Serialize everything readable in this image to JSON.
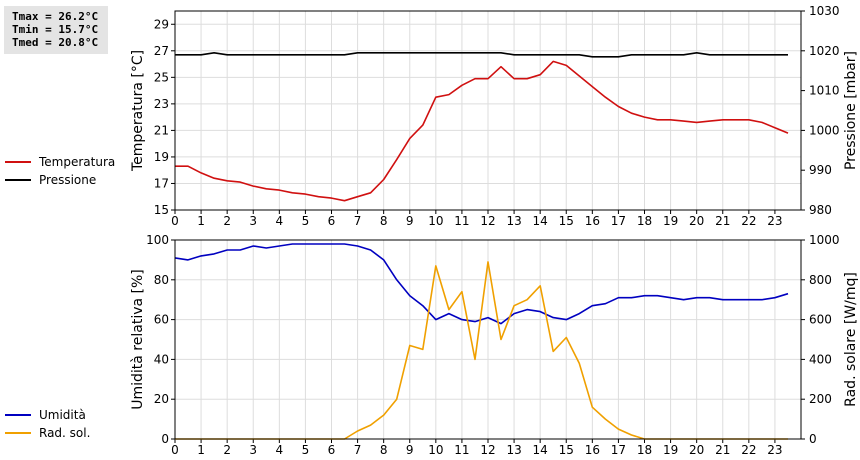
{
  "stats": {
    "tmax": "Tmax = 26.2°C",
    "tmin": "Tmin = 15.7°C",
    "tmed": "Tmed = 20.8°C"
  },
  "colors": {
    "temperature": "#d01010",
    "pressure": "#000000",
    "humidity": "#0000c0",
    "radiation": "#f0a000"
  },
  "legend_top": [
    {
      "label": "Temperatura",
      "color": "#d01010"
    },
    {
      "label": "Pressione",
      "color": "#000000"
    }
  ],
  "legend_bottom": [
    {
      "label": "Umidità",
      "color": "#0000c0"
    },
    {
      "label": "Rad. sol.",
      "color": "#f0a000"
    }
  ],
  "chart_data": [
    {
      "type": "line",
      "title": "",
      "xlabel": "",
      "ylabel": "Temperatura [°C]",
      "y2label": "Pressione [mbar]",
      "xlim": [
        0,
        24
      ],
      "xticks": [
        0,
        1,
        2,
        3,
        4,
        5,
        6,
        7,
        8,
        9,
        10,
        11,
        12,
        13,
        14,
        15,
        16,
        17,
        18,
        19,
        20,
        21,
        22,
        23
      ],
      "ylim": [
        15,
        30
      ],
      "yticks": [
        15,
        17,
        19,
        21,
        23,
        25,
        27,
        29
      ],
      "y2lim": [
        980,
        1030
      ],
      "y2ticks": [
        980,
        990,
        1000,
        1010,
        1020,
        1030
      ],
      "grid": true,
      "legend": "left",
      "series": [
        {
          "name": "Temperatura",
          "axis": "left",
          "x": [
            0,
            0.5,
            1,
            1.5,
            2,
            2.5,
            3,
            3.5,
            4,
            4.5,
            5,
            5.5,
            6,
            6.5,
            7,
            7.5,
            8,
            8.5,
            9,
            9.5,
            10,
            10.5,
            11,
            11.5,
            12,
            12.5,
            13,
            13.5,
            14,
            14.5,
            15,
            15.5,
            16,
            16.5,
            17,
            17.5,
            18,
            18.5,
            19,
            19.5,
            20,
            20.5,
            21,
            21.5,
            22,
            22.5,
            23,
            23.5
          ],
          "values": [
            18.3,
            18.3,
            17.8,
            17.4,
            17.2,
            17.1,
            16.8,
            16.6,
            16.5,
            16.3,
            16.2,
            16.0,
            15.9,
            15.7,
            16.0,
            16.3,
            17.3,
            18.8,
            20.4,
            21.4,
            23.5,
            23.7,
            24.4,
            24.9,
            24.9,
            25.8,
            24.9,
            24.9,
            25.2,
            26.2,
            25.9,
            25.1,
            24.3,
            23.5,
            22.8,
            22.3,
            22.0,
            21.8,
            21.8,
            21.7,
            21.6,
            21.7,
            21.8,
            21.8,
            21.8,
            21.6,
            21.2,
            20.8
          ]
        },
        {
          "name": "Pressione",
          "axis": "right",
          "x": [
            0,
            0.5,
            1,
            1.5,
            2,
            2.5,
            3,
            3.5,
            4,
            4.5,
            5,
            5.5,
            6,
            6.5,
            7,
            7.5,
            8,
            8.5,
            9,
            9.5,
            10,
            10.5,
            11,
            11.5,
            12,
            12.5,
            13,
            13.5,
            14,
            14.5,
            15,
            15.5,
            16,
            16.5,
            17,
            17.5,
            18,
            18.5,
            19,
            19.5,
            20,
            20.5,
            21,
            21.5,
            22,
            22.5,
            23,
            23.5
          ],
          "values": [
            1019,
            1019,
            1019,
            1019.5,
            1019,
            1019,
            1019,
            1019,
            1019,
            1019,
            1019,
            1019,
            1019,
            1019,
            1019.5,
            1019.5,
            1019.5,
            1019.5,
            1019.5,
            1019.5,
            1019.5,
            1019.5,
            1019.5,
            1019.5,
            1019.5,
            1019.5,
            1019,
            1019,
            1019,
            1019,
            1019,
            1019,
            1018.5,
            1018.5,
            1018.5,
            1019,
            1019,
            1019,
            1019,
            1019,
            1019.5,
            1019,
            1019,
            1019,
            1019,
            1019,
            1019,
            1019
          ]
        }
      ]
    },
    {
      "type": "line",
      "title": "",
      "xlabel": "",
      "ylabel": "Umidità relativa [%]",
      "y2label": "Rad. solare [W/mq]",
      "xlim": [
        0,
        24
      ],
      "xticks": [
        0,
        1,
        2,
        3,
        4,
        5,
        6,
        7,
        8,
        9,
        10,
        11,
        12,
        13,
        14,
        15,
        16,
        17,
        18,
        19,
        20,
        21,
        22,
        23
      ],
      "ylim": [
        0,
        100
      ],
      "yticks": [
        0,
        20,
        40,
        60,
        80,
        100
      ],
      "y2lim": [
        0,
        1000
      ],
      "y2ticks": [
        0,
        200,
        400,
        600,
        800,
        1000
      ],
      "grid": true,
      "legend": "left",
      "series": [
        {
          "name": "Umidità",
          "axis": "left",
          "x": [
            0,
            0.5,
            1,
            1.5,
            2,
            2.5,
            3,
            3.5,
            4,
            4.5,
            5,
            5.5,
            6,
            6.5,
            7,
            7.5,
            8,
            8.5,
            9,
            9.5,
            10,
            10.5,
            11,
            11.5,
            12,
            12.5,
            13,
            13.5,
            14,
            14.5,
            15,
            15.5,
            16,
            16.5,
            17,
            17.5,
            18,
            18.5,
            19,
            19.5,
            20,
            20.5,
            21,
            21.5,
            22,
            22.5,
            23,
            23.5
          ],
          "values": [
            91,
            90,
            92,
            93,
            95,
            95,
            97,
            96,
            97,
            98,
            98,
            98,
            98,
            98,
            97,
            95,
            90,
            80,
            72,
            67,
            60,
            63,
            60,
            59,
            61,
            58,
            63,
            65,
            64,
            61,
            60,
            63,
            67,
            68,
            71,
            71,
            72,
            72,
            71,
            70,
            71,
            71,
            70,
            70,
            70,
            70,
            71,
            73
          ]
        },
        {
          "name": "Rad. sol.",
          "axis": "right",
          "x": [
            0,
            0.5,
            1,
            1.5,
            2,
            2.5,
            3,
            3.5,
            4,
            4.5,
            5,
            5.5,
            6,
            6.5,
            7,
            7.5,
            8,
            8.5,
            9,
            9.5,
            10,
            10.5,
            11,
            11.5,
            12,
            12.5,
            13,
            13.5,
            14,
            14.5,
            15,
            15.5,
            16,
            16.5,
            17,
            17.5,
            18,
            18.5,
            19,
            19.5,
            20,
            20.5,
            21,
            21.5,
            22,
            22.5,
            23,
            23.5
          ],
          "values": [
            0,
            0,
            0,
            0,
            0,
            0,
            0,
            0,
            0,
            0,
            0,
            0,
            0,
            0,
            40,
            70,
            120,
            200,
            470,
            450,
            870,
            650,
            740,
            400,
            890,
            500,
            670,
            700,
            770,
            440,
            510,
            380,
            160,
            100,
            50,
            20,
            0,
            0,
            0,
            0,
            0,
            0,
            0,
            0,
            0,
            0,
            0,
            0
          ]
        }
      ]
    }
  ]
}
